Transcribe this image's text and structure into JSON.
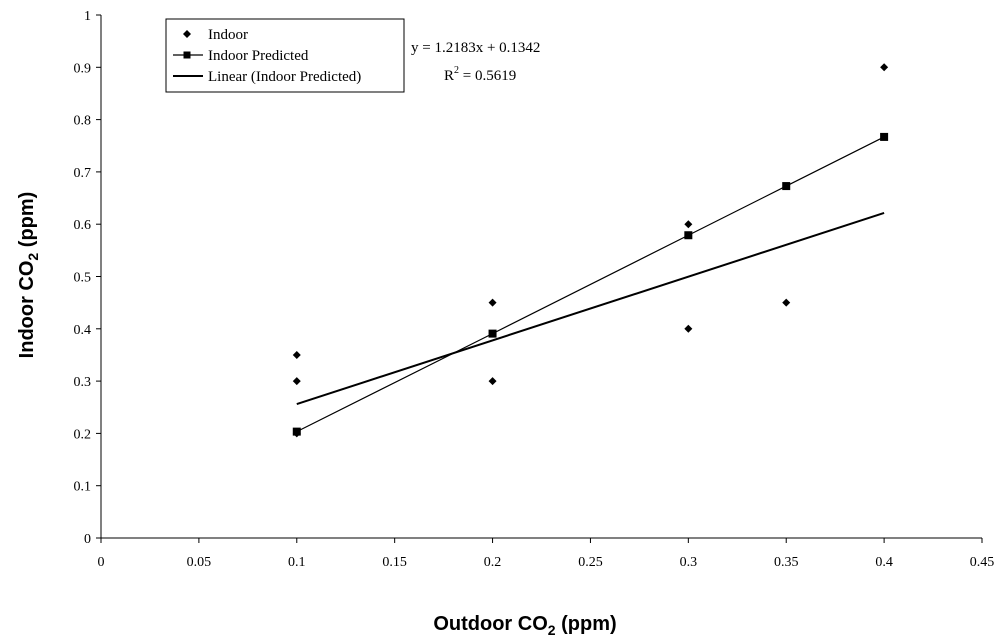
{
  "chart_data": {
    "type": "scatter",
    "title": "",
    "xlabel": {
      "pre": "Outdoor CO",
      "sub": "2",
      "post": " (ppm)"
    },
    "ylabel": {
      "pre": "Indoor CO",
      "sub": "2",
      "post": " (ppm)"
    },
    "xlim": [
      0,
      0.45
    ],
    "ylim": [
      0,
      1
    ],
    "x_ticks": [
      "0",
      "0.05",
      "0.1",
      "0.15",
      "0.2",
      "0.25",
      "0.3",
      "0.35",
      "0.4",
      "0.45"
    ],
    "y_ticks": [
      "0",
      "0.1",
      "0.2",
      "0.3",
      "0.4",
      "0.5",
      "0.6",
      "0.7",
      "0.8",
      "0.9",
      "1"
    ],
    "grid": false,
    "legend_position": "top-left",
    "series": [
      {
        "name": "Indoor",
        "marker": "diamond",
        "points": [
          [
            0.1,
            0.35
          ],
          [
            0.1,
            0.3
          ],
          [
            0.1,
            0.2
          ],
          [
            0.2,
            0.45
          ],
          [
            0.2,
            0.3
          ],
          [
            0.3,
            0.6
          ],
          [
            0.3,
            0.4
          ],
          [
            0.35,
            0.45
          ],
          [
            0.4,
            0.9
          ]
        ]
      },
      {
        "name": "Indoor Predicted",
        "marker": "square",
        "points": [
          [
            0.1,
            0.2034
          ],
          [
            0.2,
            0.3908
          ],
          [
            0.3,
            0.5789
          ],
          [
            0.35,
            0.6729
          ],
          [
            0.4,
            0.7669
          ]
        ]
      },
      {
        "name": "Linear (Indoor Predicted)",
        "marker": "line",
        "slope": 1.2183,
        "intercept": 0.1342,
        "x_range": [
          0.1,
          0.4
        ]
      }
    ],
    "annotations": {
      "equation": "y = 1.2183x + 0.1342",
      "r2_prefix": "R",
      "r2_sup": "2",
      "r2_value": " = 0.5619"
    }
  }
}
